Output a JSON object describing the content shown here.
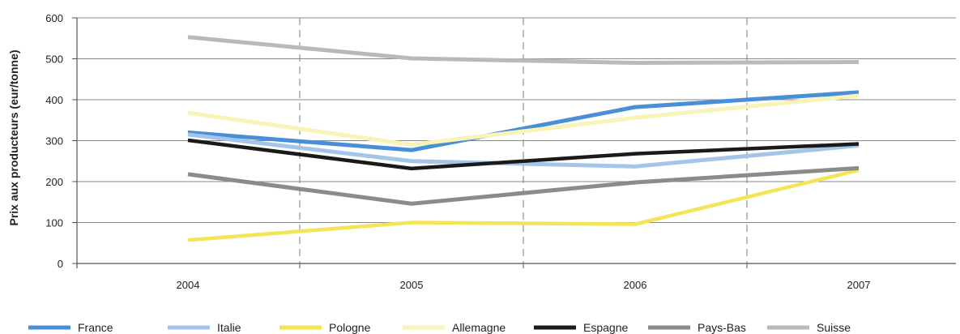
{
  "chart_data": {
    "type": "line",
    "ylabel": "Prix aux producteurs (eur/tonne)",
    "xlabel": "",
    "categories": [
      "2004",
      "2005",
      "2006",
      "2007"
    ],
    "ylim": [
      0,
      600
    ],
    "yticks": [
      0,
      100,
      200,
      300,
      400,
      500,
      600
    ],
    "grid": "horizontal solid, vertical dashed",
    "legend_position": "bottom",
    "series": [
      {
        "name": "France",
        "color": "#4a8fd6",
        "width": 5,
        "values": [
          320,
          277,
          382,
          418
        ]
      },
      {
        "name": "Italie",
        "color": "#a4c4ea",
        "width": 5,
        "values": [
          315,
          250,
          237,
          288
        ]
      },
      {
        "name": "Pologne",
        "color": "#f5e456",
        "width": 4.5,
        "values": [
          57,
          100,
          96,
          228
        ]
      },
      {
        "name": "Allemagne",
        "color": "#f8f3b6",
        "width": 5,
        "values": [
          368,
          290,
          356,
          410
        ]
      },
      {
        "name": "Espagne",
        "color": "#1a1a1a",
        "width": 4.5,
        "values": [
          301,
          232,
          268,
          292
        ]
      },
      {
        "name": "Pays-Bas",
        "color": "#8b8b8b",
        "width": 5,
        "values": [
          218,
          146,
          198,
          233
        ]
      },
      {
        "name": "Suisse",
        "color": "#b9b9bb",
        "width": 5,
        "values": [
          553,
          501,
          490,
          492
        ]
      }
    ]
  }
}
